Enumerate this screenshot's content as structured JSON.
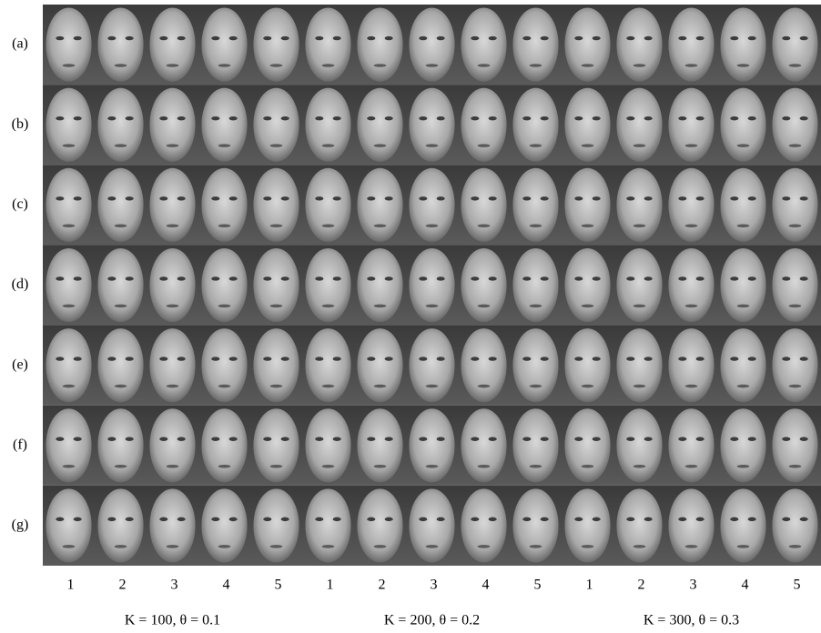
{
  "row_labels": [
    "(a)",
    "(b)",
    "(c)",
    "(d)",
    "(e)",
    "(f)",
    "(g)"
  ],
  "groups": [
    {
      "caption": "K = 100, θ = 0.1",
      "columns": [
        "1",
        "2",
        "3",
        "4",
        "5"
      ]
    },
    {
      "caption": "K = 200, θ = 0.2",
      "columns": [
        "1",
        "2",
        "3",
        "4",
        "5"
      ]
    },
    {
      "caption": "K = 300, θ = 0.3",
      "columns": [
        "1",
        "2",
        "3",
        "4",
        "5"
      ]
    }
  ]
}
